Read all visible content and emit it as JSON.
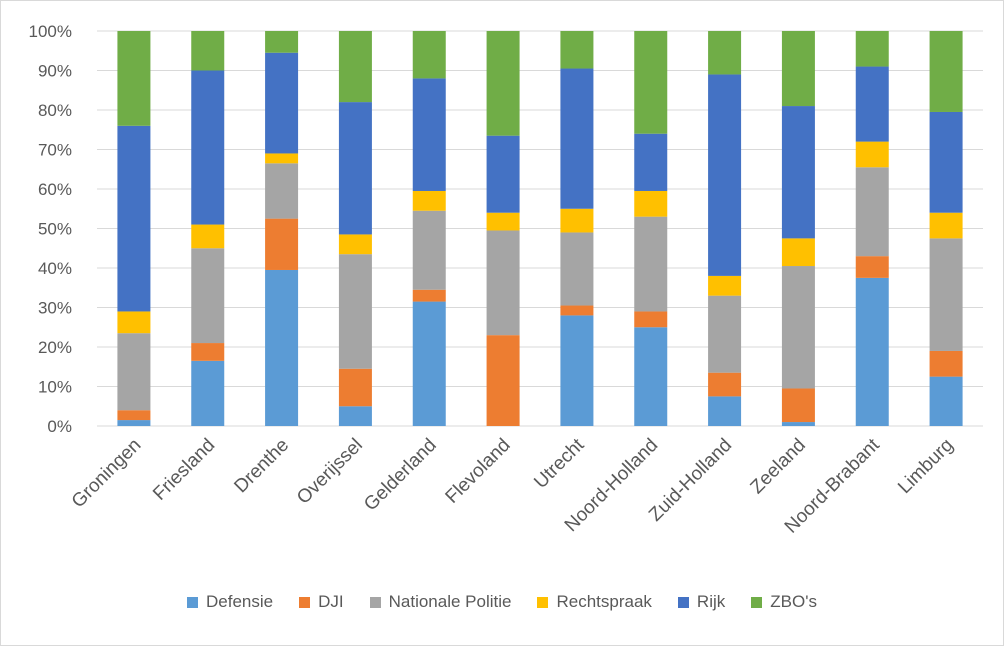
{
  "chart_data": {
    "type": "bar",
    "stacked": true,
    "percent_stacked": true,
    "title": "",
    "xlabel": "",
    "ylabel": "",
    "ylim": [
      0,
      100
    ],
    "yticks": [
      0,
      10,
      20,
      30,
      40,
      50,
      60,
      70,
      80,
      90,
      100
    ],
    "ytick_labels": [
      "0%",
      "10%",
      "20%",
      "30%",
      "40%",
      "50%",
      "60%",
      "70%",
      "80%",
      "90%",
      "100%"
    ],
    "grid": true,
    "legend_position": "bottom",
    "categories": [
      "Groningen",
      "Friesland",
      "Drenthe",
      "Overijssel",
      "Gelderland",
      "Flevoland",
      "Utrecht",
      "Noord-Holland",
      "Zuid-Holland",
      "Zeeland",
      "Noord-Brabant",
      "Limburg"
    ],
    "series": [
      {
        "name": "Defensie",
        "color": "#5B9BD5",
        "values": [
          1.5,
          16.5,
          39.5,
          5,
          31.5,
          0,
          28,
          25,
          7.5,
          1,
          37.5,
          12.5
        ]
      },
      {
        "name": "DJI",
        "color": "#ED7D31",
        "values": [
          2.5,
          4.5,
          13,
          9.5,
          3,
          23,
          2.5,
          4,
          6,
          8.5,
          5.5,
          6.5
        ]
      },
      {
        "name": "Nationale Politie",
        "color": "#A5A5A5",
        "values": [
          19.5,
          24,
          14,
          29,
          20,
          26.5,
          18.5,
          24,
          19.5,
          31,
          22.5,
          28.5
        ]
      },
      {
        "name": "Rechtspraak",
        "color": "#FFC000",
        "values": [
          5.5,
          6,
          2.5,
          5,
          5,
          4.5,
          6,
          6.5,
          5,
          7,
          6.5,
          6.5
        ]
      },
      {
        "name": "Rijk",
        "color": "#4472C4",
        "values": [
          47,
          39,
          25.5,
          33.5,
          28.5,
          19.5,
          35.5,
          14.5,
          51,
          33.5,
          19,
          25.5
        ]
      },
      {
        "name": "ZBO's",
        "color": "#70AD47",
        "values": [
          24,
          10,
          5.5,
          18,
          12,
          26.5,
          9.5,
          26,
          11,
          19,
          9,
          20.5
        ]
      }
    ]
  }
}
